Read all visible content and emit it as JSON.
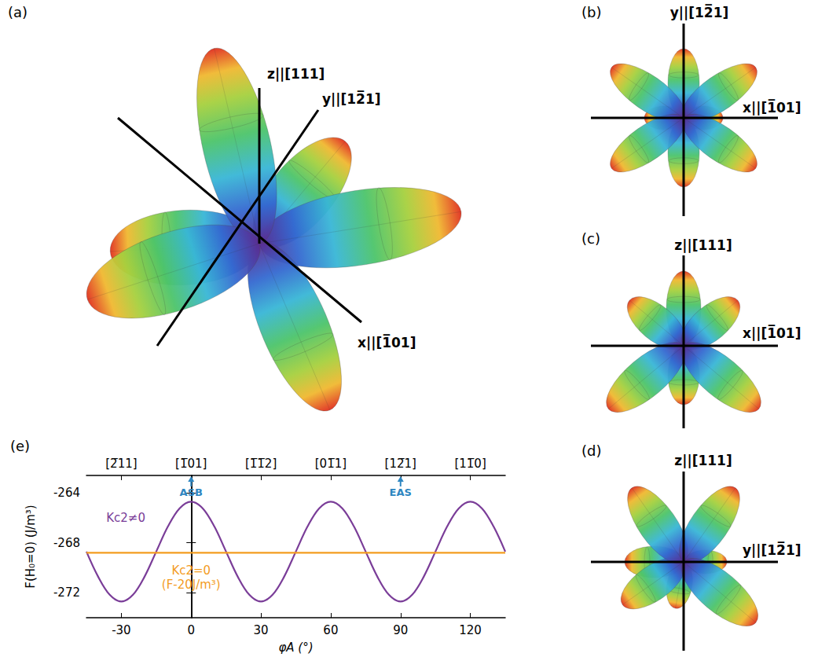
{
  "panels": [
    {
      "letter": "(a)",
      "labels": [
        "z||[111]",
        "y||[12̅1]",
        "x||[1̅01]"
      ]
    },
    {
      "letter": "(b)",
      "labels": [
        "y||[12̅1]",
        "x||[1̅01]"
      ]
    },
    {
      "letter": "(c)",
      "labels": [
        "z||[111]",
        "x||[1̅01]"
      ]
    },
    {
      "letter": "(d)",
      "labels": [
        "z||[111]",
        "y||[12̅1]"
      ]
    }
  ],
  "chart_data": {
    "type": "line",
    "title": "(e)",
    "x_label": "φA (°)",
    "y_label": "F(H₀=0) (J/m³)",
    "xlim": [
      -45,
      135
    ],
    "xticks": [
      -30,
      0,
      30,
      60,
      90,
      120
    ],
    "x2lim": [
      -45,
      135
    ],
    "x2ticks": [
      {
        "value": -30,
        "label": "[2̅11]"
      },
      {
        "value": 0,
        "label": "[1̅01]"
      },
      {
        "value": 30,
        "label": "[1̅1̅2]"
      },
      {
        "value": 60,
        "label": "[01̅1]"
      },
      {
        "value": 90,
        "label": "[12̅1]"
      },
      {
        "value": 120,
        "label": "[11̅0]"
      }
    ],
    "ylim": [
      -274,
      -262.6
    ],
    "yticks": [
      -272,
      -268,
      -264
    ],
    "grid": false,
    "series": [
      {
        "name": "Kc2≠0",
        "color": "#7a3d98",
        "x": [
          -45,
          -40,
          -35,
          -30,
          -25,
          -20,
          -15,
          -10,
          -5,
          0,
          5,
          10,
          15,
          20,
          25,
          30,
          35,
          40,
          45,
          50,
          55,
          60,
          65,
          70,
          75,
          80,
          85,
          90,
          95,
          100,
          105,
          110,
          115,
          120,
          125,
          130,
          135
        ],
        "values": [
          -268.7,
          -270.7,
          -272.16,
          -272.7,
          -272.16,
          -270.7,
          -268.7,
          -266.7,
          -265.24,
          -264.7,
          -265.24,
          -266.7,
          -268.7,
          -270.7,
          -272.16,
          -272.7,
          -272.16,
          -270.7,
          -268.7,
          -266.7,
          -265.24,
          -264.7,
          -265.24,
          -266.7,
          -268.7,
          -270.7,
          -272.16,
          -272.7,
          -272.16,
          -270.7,
          -268.7,
          -266.7,
          -265.24,
          -264.7,
          -265.24,
          -266.7,
          -268.7
        ]
      },
      {
        "name": "Kc2=0",
        "color": "#f39c1f",
        "x": [
          -45,
          135
        ],
        "values": [
          -268.8,
          -268.8
        ]
      }
    ],
    "annotations": [
      {
        "text": "ASB",
        "x": 0,
        "color": "#2e86c1"
      },
      {
        "text": "EAS",
        "x": 90,
        "color": "#2e86c1"
      },
      {
        "text": "(F-20J/m³)",
        "color": "#f39c1f"
      }
    ]
  }
}
